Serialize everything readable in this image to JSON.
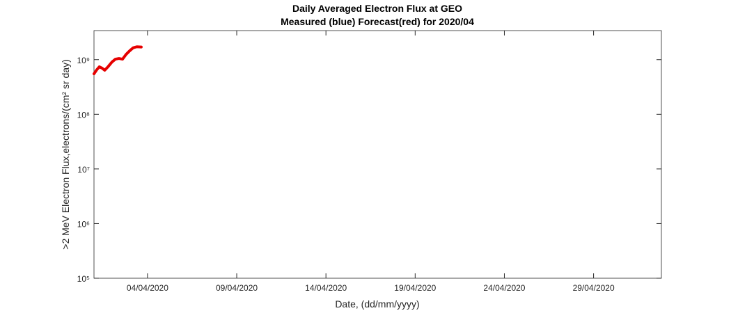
{
  "chart_data": {
    "type": "line",
    "title": "Daily Averaged Electron Flux at GEO",
    "subtitle": "Measured (blue) Forecast(red) for 2020/04",
    "x_label": "Date, (dd/mm/yyyy)",
    "y_label": ">2 MeV Electron Flux,electrons/(cm² sr day)",
    "log_y": true,
    "xlim": [
      1,
      32.8
    ],
    "xticks": [
      {
        "value": 4,
        "label": "04/04/2020"
      },
      {
        "value": 9,
        "label": "09/04/2020"
      },
      {
        "value": 14,
        "label": "14/04/2020"
      },
      {
        "value": 19,
        "label": "19/04/2020"
      },
      {
        "value": 24,
        "label": "24/04/2020"
      },
      {
        "value": 29,
        "label": "29/04/2020"
      }
    ],
    "ylim": [
      100000,
      3400000000
    ],
    "yticks": [
      {
        "value": 100000,
        "label": "10⁵"
      },
      {
        "value": 1000000,
        "label": "10⁶"
      },
      {
        "value": 10000000,
        "label": "10⁷"
      },
      {
        "value": 100000000,
        "label": "10⁸"
      },
      {
        "value": 1000000000,
        "label": "10⁹"
      }
    ],
    "x": [
      1.0,
      1.15,
      1.3,
      1.45,
      1.6,
      1.8,
      2.0,
      2.2,
      2.4,
      2.6,
      2.8,
      3.0,
      3.2,
      3.4,
      3.65
    ],
    "series": [
      {
        "name": "Forecast",
        "color": "#e60000",
        "values": [
          550000000,
          650000000,
          740000000,
          700000000,
          640000000,
          750000000,
          900000000,
          1020000000,
          1050000000,
          1020000000,
          1250000000,
          1450000000,
          1650000000,
          1720000000,
          1700000000
        ]
      }
    ]
  }
}
